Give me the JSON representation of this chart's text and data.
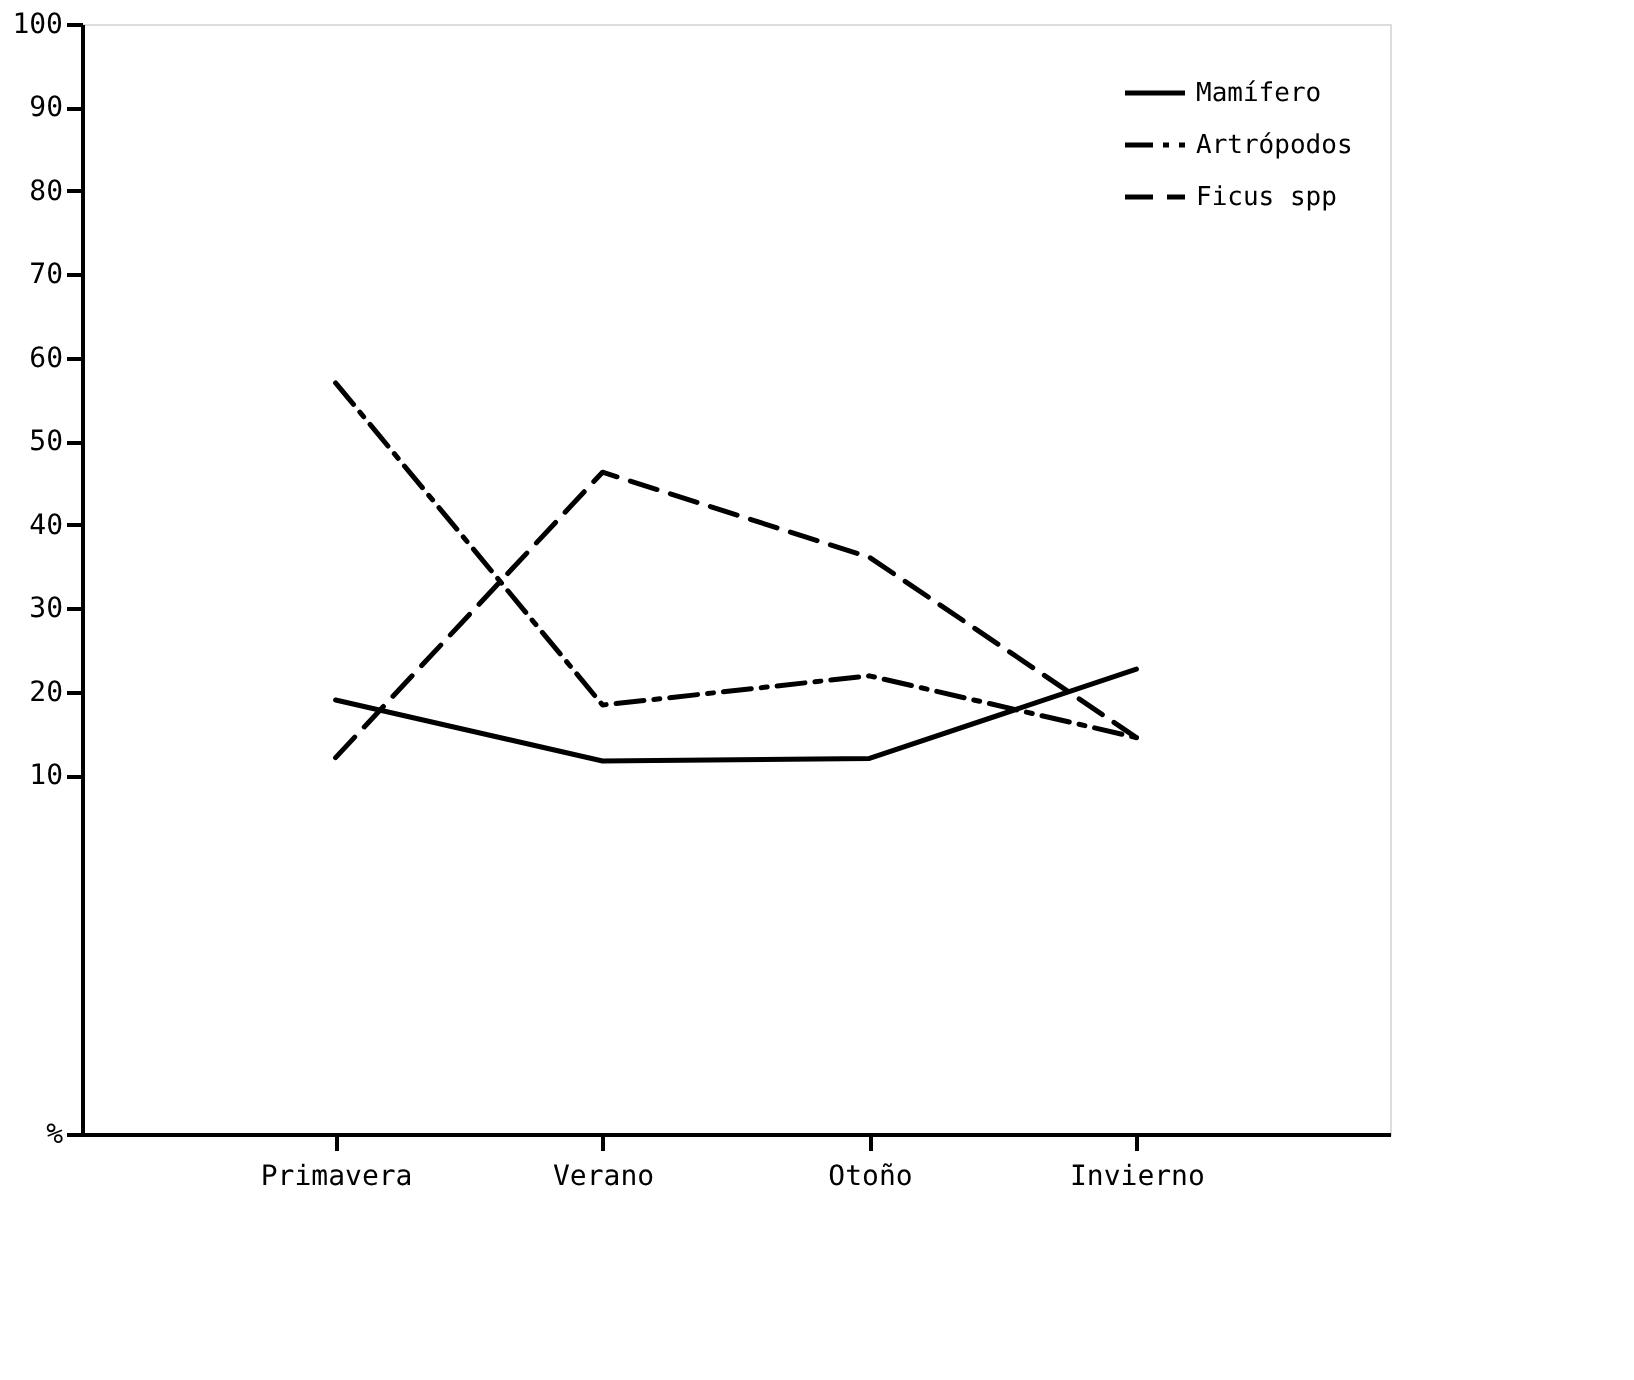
{
  "chart_data": {
    "type": "line",
    "categories": [
      "Primavera",
      "Verano",
      "Otoño",
      "Invierno"
    ],
    "series": [
      {
        "name": "Mamífero",
        "color": "#000000",
        "line_style": "solid",
        "values": [
          19,
          11.7,
          12,
          22.7
        ]
      },
      {
        "name": "Artrópodos",
        "color": "#000000",
        "line_style": "dashdot",
        "values": [
          57,
          18.4,
          21.9,
          14.5
        ]
      },
      {
        "name": "Ficus spp",
        "color": "#000000",
        "line_style": "dashed",
        "values": [
          12.1,
          46.3,
          36.1,
          14.5
        ]
      }
    ],
    "ylim": [
      -33,
      100
    ],
    "yticks": [
      {
        "value": -33,
        "label": "%"
      },
      10,
      20,
      30,
      40,
      50,
      60,
      70,
      80,
      90,
      100
    ],
    "grid": false,
    "legend": "top right",
    "marker": "none"
  }
}
